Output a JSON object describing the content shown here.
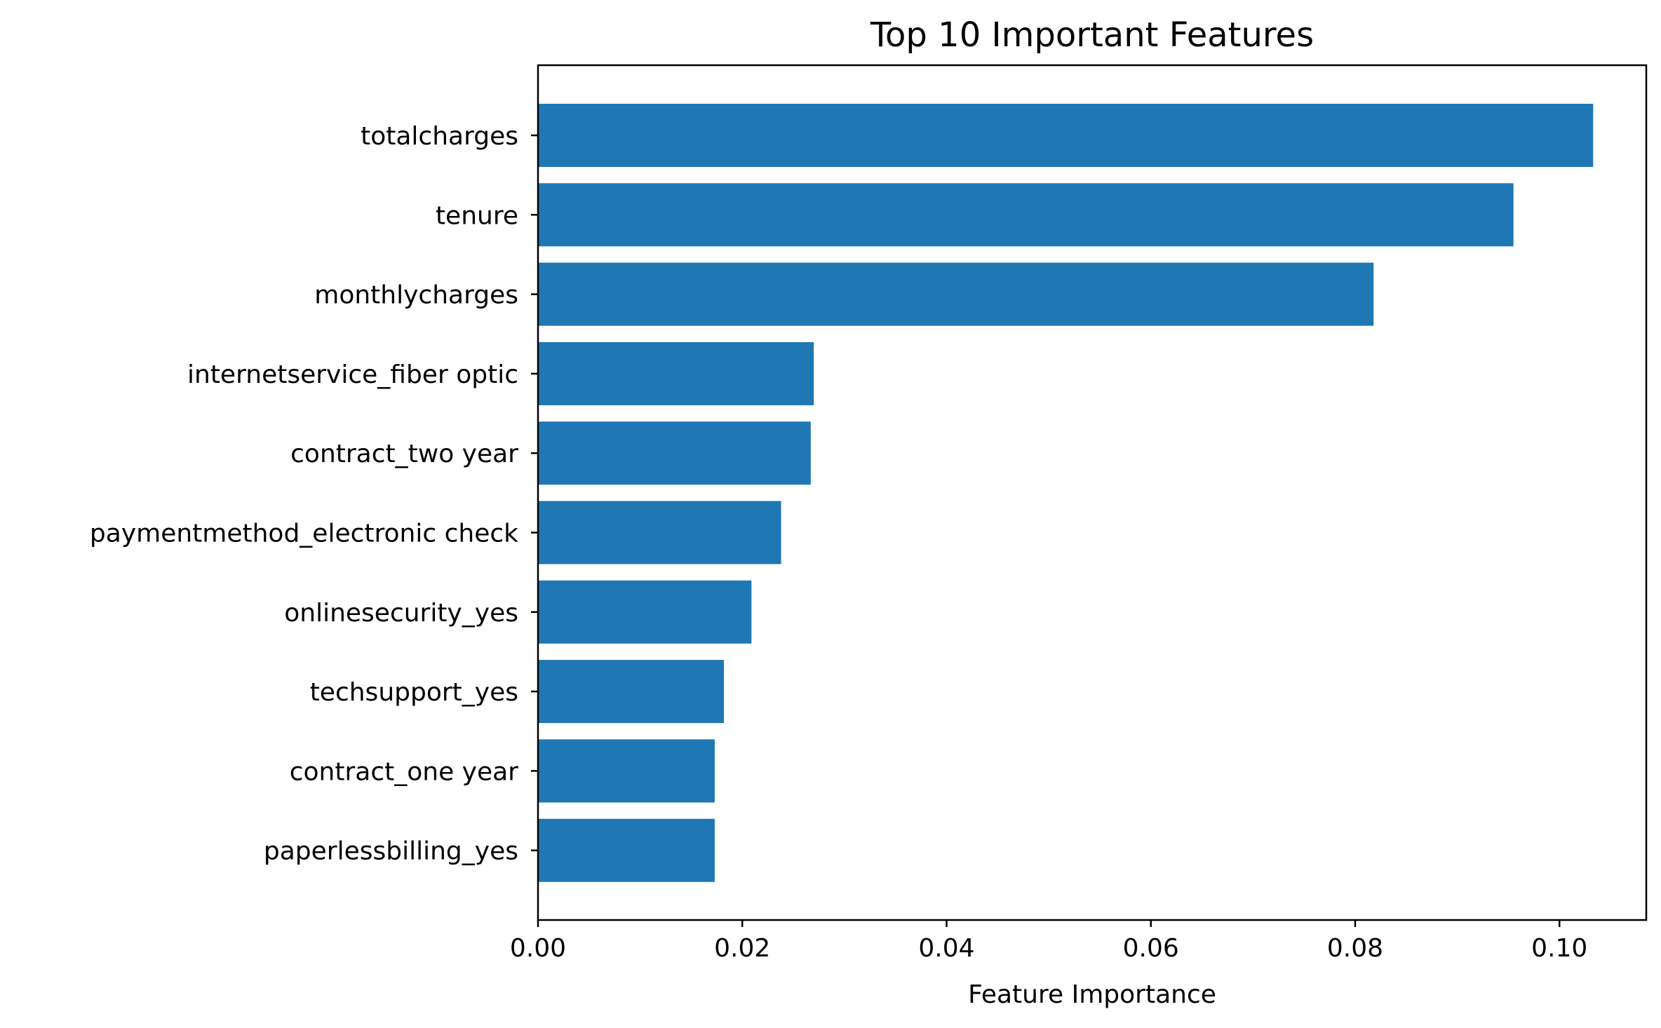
{
  "chart_data": {
    "type": "bar",
    "orientation": "horizontal",
    "title": "Top 10 Important Features",
    "xlabel": "Feature Importance",
    "ylabel": "",
    "categories": [
      "totalcharges",
      "tenure",
      "monthlycharges",
      "internetservice_fiber optic",
      "contract_two year",
      "paymentmethod_electronic check",
      "onlinesecurity_yes",
      "techsupport_yes",
      "contract_one year",
      "paperlessbilling_yes"
    ],
    "values": [
      0.1033,
      0.0955,
      0.0818,
      0.027,
      0.0267,
      0.0238,
      0.0209,
      0.0182,
      0.0173,
      0.0173
    ],
    "xlim": [
      0,
      0.1085
    ],
    "xticks": [
      0.0,
      0.02,
      0.04,
      0.06,
      0.08,
      0.1
    ],
    "xtick_labels": [
      "0.00",
      "0.02",
      "0.04",
      "0.06",
      "0.08",
      "0.10"
    ],
    "bar_color": "#1f77b4",
    "grid": false,
    "legend": "none"
  }
}
